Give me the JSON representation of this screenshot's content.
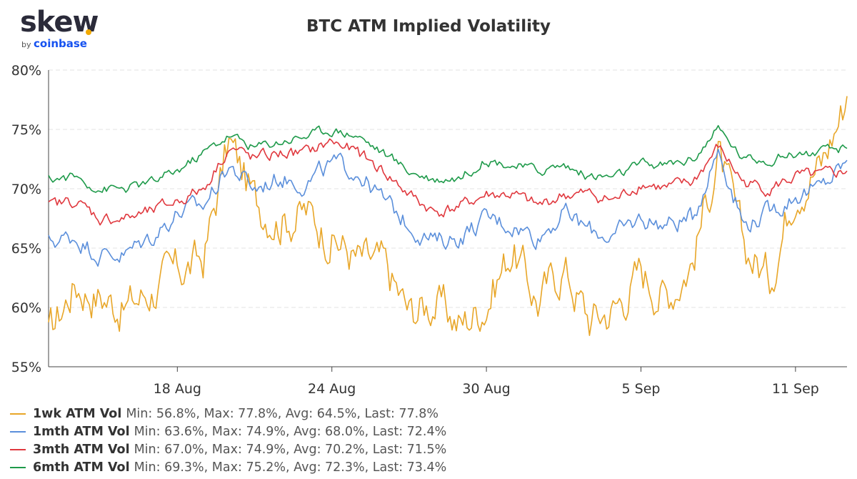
{
  "logo": {
    "word": "skew",
    "by": "by",
    "brand": "coinbase"
  },
  "chart_data": {
    "type": "line",
    "title": "BTC ATM Implied Volatility",
    "xlabel": "",
    "ylabel": "",
    "ylim": [
      55,
      80
    ],
    "y_ticks": [
      55,
      60,
      65,
      70,
      75,
      80
    ],
    "y_tick_labels": [
      "55%",
      "60%",
      "65%",
      "70%",
      "75%",
      "80%"
    ],
    "x_range": [
      "2020-08-13",
      "2020-09-13"
    ],
    "x_tick_values": [
      "2020-08-18",
      "2020-08-24",
      "2020-08-30",
      "2020-09-05",
      "2020-09-11"
    ],
    "x_tick_labels": [
      "18 Aug",
      "24 Aug",
      "30 Aug",
      "5 Sep",
      "11 Sep"
    ],
    "grid": "horizontal dashed",
    "legend_position": "bottom-left",
    "x": [
      "2020-08-13",
      "2020-08-14",
      "2020-08-15",
      "2020-08-16",
      "2020-08-17",
      "2020-08-18",
      "2020-08-19",
      "2020-08-20",
      "2020-08-21",
      "2020-08-22",
      "2020-08-23",
      "2020-08-24",
      "2020-08-25",
      "2020-08-26",
      "2020-08-27",
      "2020-08-28",
      "2020-08-29",
      "2020-08-30",
      "2020-08-31",
      "2020-09-01",
      "2020-09-02",
      "2020-09-03",
      "2020-09-04",
      "2020-09-05",
      "2020-09-06",
      "2020-09-07",
      "2020-09-08",
      "2020-09-09",
      "2020-09-10",
      "2020-09-11",
      "2020-09-12",
      "2020-09-13"
    ],
    "series": [
      {
        "name": "1wk ATM Vol",
        "color": "#e8a628",
        "stats": "Min: 56.8%, Max: 77.8%, Avg: 64.5%, Last: 77.8%",
        "values": [
          57.5,
          62.0,
          61.0,
          60.0,
          61.5,
          63.0,
          64.0,
          74.0,
          69.0,
          67.5,
          68.0,
          66.0,
          64.0,
          63.5,
          59.5,
          60.5,
          58.5,
          60.5,
          65.0,
          60.5,
          63.5,
          59.0,
          60.0,
          63.0,
          61.0,
          64.0,
          73.0,
          65.0,
          62.5,
          70.5,
          72.0,
          77.8
        ]
      },
      {
        "name": "1mth ATM Vol",
        "color": "#5b8fdb",
        "stats": "Min: 63.6%, Max: 74.9%, Avg: 68.0%, Last: 72.4%",
        "values": [
          65.5,
          66.0,
          64.5,
          64.5,
          66.0,
          68.0,
          68.5,
          72.0,
          70.0,
          71.0,
          70.5,
          72.0,
          71.5,
          69.0,
          67.0,
          65.5,
          66.0,
          67.5,
          67.0,
          66.0,
          68.0,
          66.5,
          66.0,
          67.5,
          67.0,
          67.5,
          73.5,
          67.0,
          68.0,
          69.5,
          70.0,
          72.4
        ]
      },
      {
        "name": "3mth ATM Vol",
        "color": "#e0383e",
        "stats": "Min: 67.0%, Max: 74.9%, Avg: 70.2%, Last: 71.5%",
        "values": [
          68.5,
          69.0,
          67.5,
          67.5,
          68.0,
          69.0,
          70.0,
          73.5,
          72.5,
          73.0,
          73.0,
          74.0,
          73.0,
          71.5,
          69.5,
          68.0,
          68.5,
          69.5,
          69.5,
          68.5,
          69.5,
          69.5,
          69.0,
          70.5,
          70.0,
          70.5,
          73.5,
          70.5,
          70.0,
          71.0,
          71.0,
          71.5
        ]
      },
      {
        "name": "6mth ATM Vol",
        "color": "#1e9a4a",
        "stats": "Min: 69.3%, Max: 75.2%, Avg: 72.3%, Last: 73.4%",
        "values": [
          70.8,
          71.0,
          70.0,
          70.0,
          70.5,
          71.5,
          73.0,
          74.5,
          73.5,
          74.0,
          74.5,
          75.0,
          74.5,
          73.0,
          71.5,
          70.8,
          71.0,
          72.5,
          72.0,
          71.5,
          72.0,
          71.0,
          71.0,
          72.0,
          72.0,
          72.5,
          75.0,
          72.5,
          72.5,
          73.0,
          73.0,
          73.4
        ]
      }
    ]
  }
}
